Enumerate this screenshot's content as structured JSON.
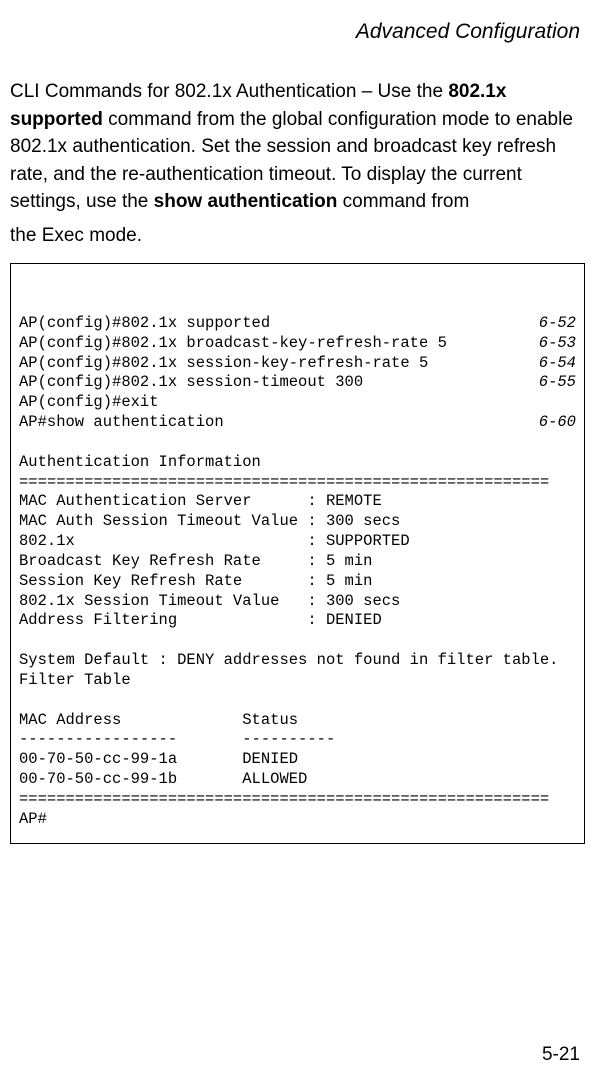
{
  "header": {
    "title": "Advanced Configuration"
  },
  "intro": {
    "pre1": "CLI Commands for 802.1x Authentication – Use the ",
    "b1": "802.1x supported",
    "mid1": " command from the global configuration mode to enable 802.1x authentication. Set the session and broadcast key refresh rate, and the re-authentication timeout. To display the current settings, use the ",
    "b2": "show authentication",
    "mid2": " command from ",
    "line2": "the Exec mode."
  },
  "cli": {
    "rows": [
      {
        "left": "AP(config)#802.1x supported",
        "right": "6-52"
      },
      {
        "left": "AP(config)#802.1x broadcast-key-refresh-rate 5",
        "right": "6-53"
      },
      {
        "left": "AP(config)#802.1x session-key-refresh-rate 5",
        "right": "6-54"
      },
      {
        "left": "AP(config)#802.1x session-timeout 300",
        "right": "6-55"
      },
      {
        "left": "AP(config)#exit",
        "right": ""
      },
      {
        "left": "AP#show authentication",
        "right": "6-60"
      }
    ],
    "body": "\nAuthentication Information\n=========================================================\nMAC Authentication Server      : REMOTE\nMAC Auth Session Timeout Value : 300 secs\n802.1x                         : SUPPORTED\nBroadcast Key Refresh Rate     : 5 min\nSession Key Refresh Rate       : 5 min\n802.1x Session Timeout Value   : 300 secs\nAddress Filtering              : DENIED\n\nSystem Default : DENY addresses not found in filter table.\nFilter Table\n\nMAC Address             Status\n-----------------       ----------\n00-70-50-cc-99-1a       DENIED\n00-70-50-cc-99-1b       ALLOWED\n=========================================================\nAP#"
  },
  "footer": {
    "page": "5-21"
  }
}
